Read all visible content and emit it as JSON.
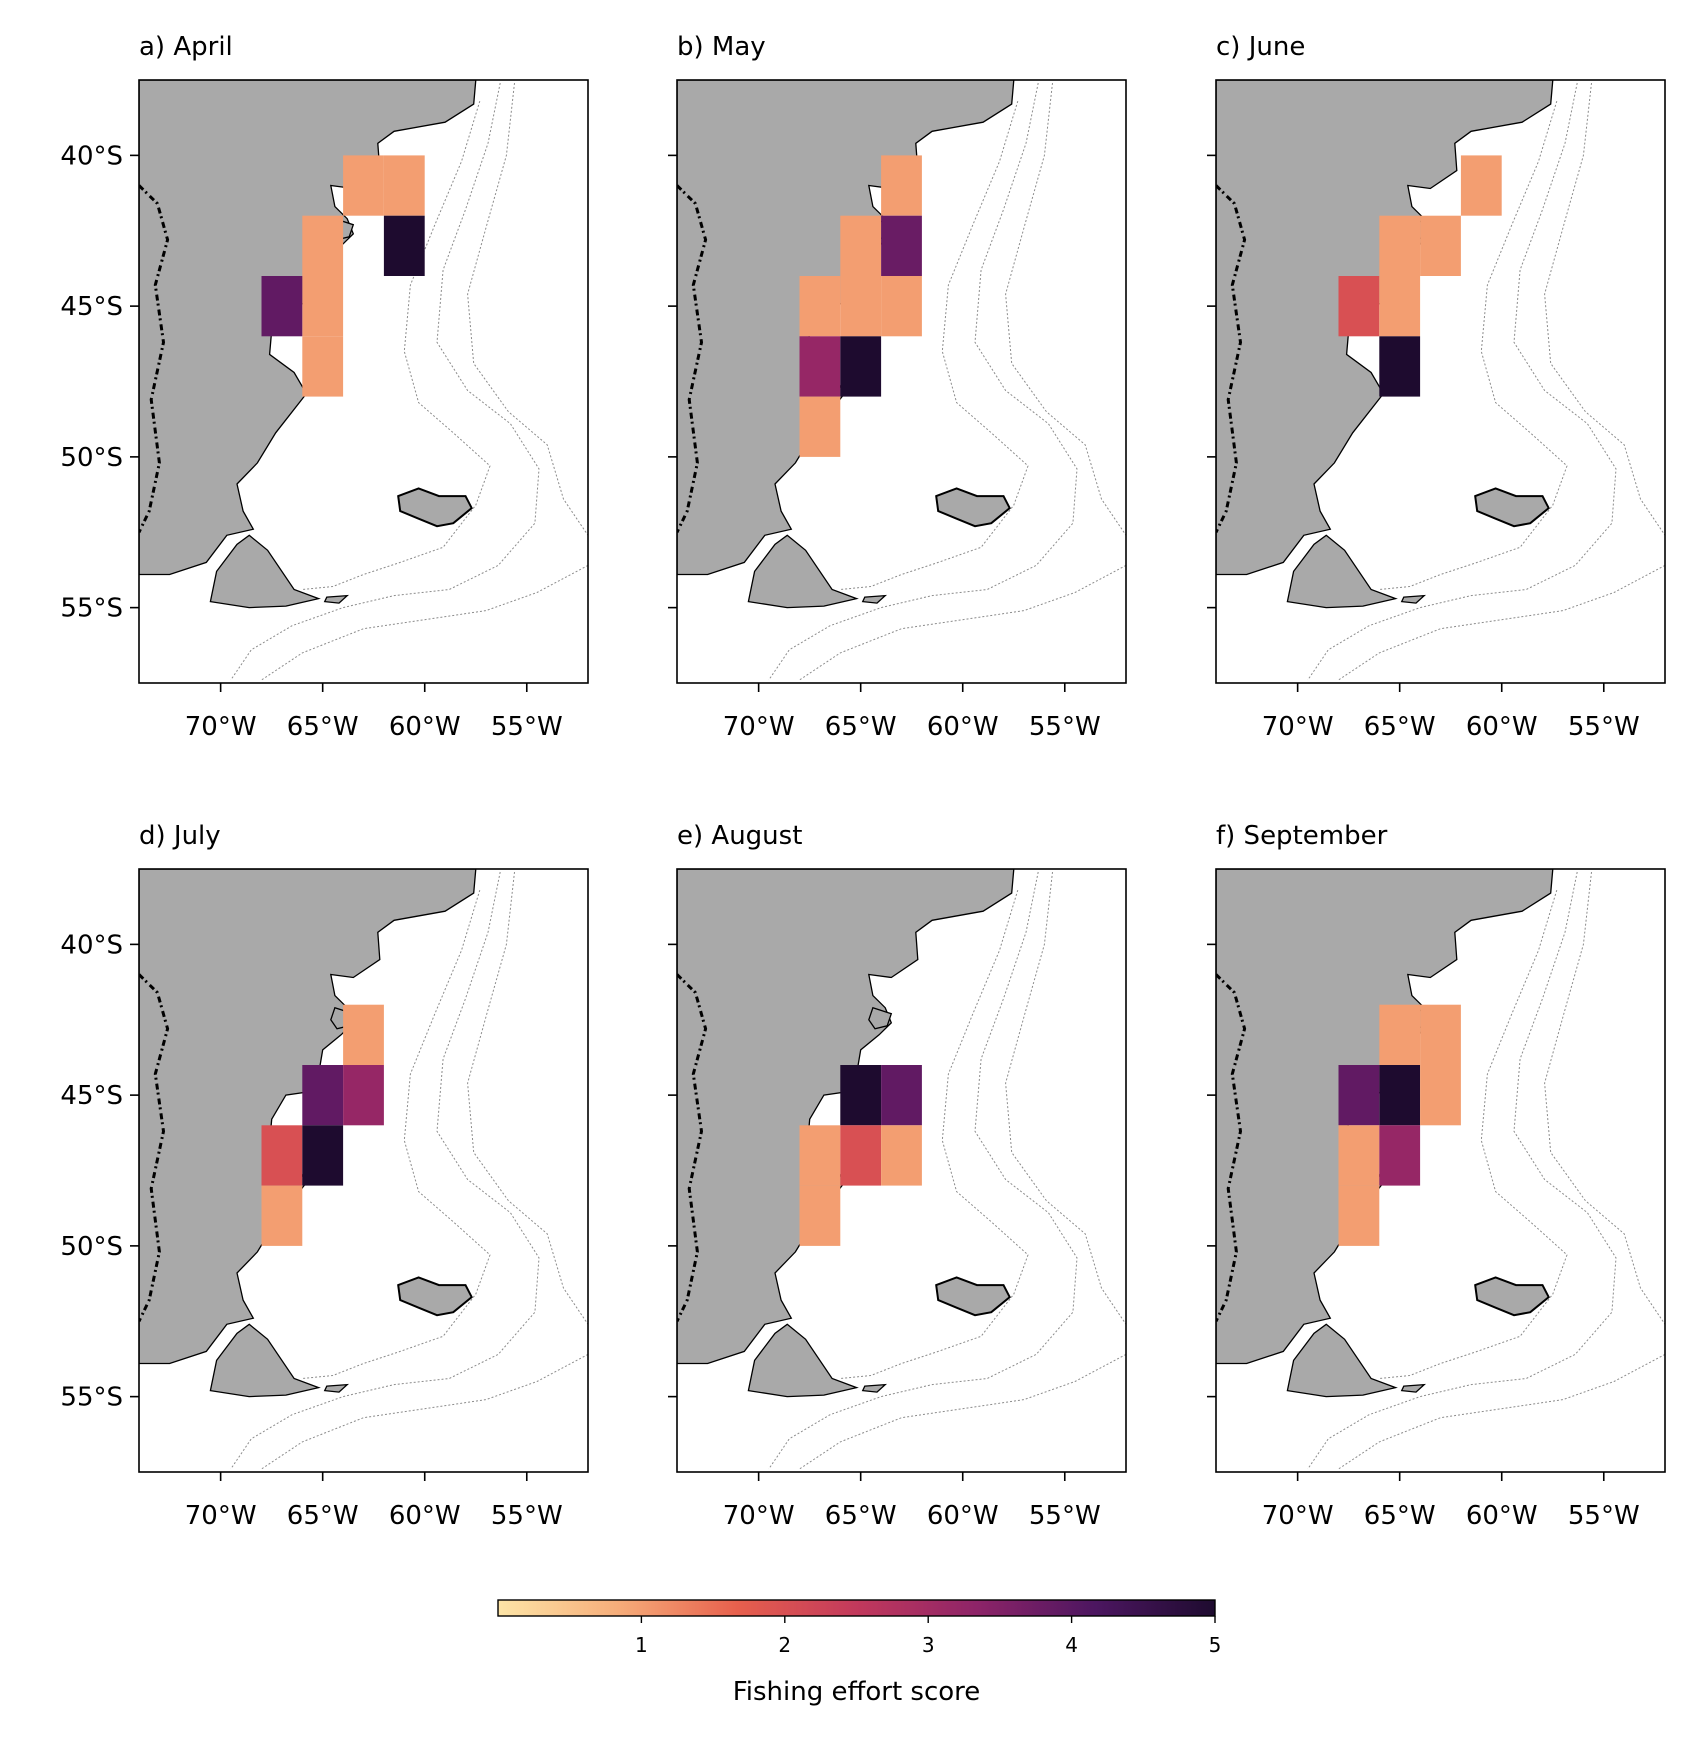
{
  "figure": {
    "colorbar": {
      "label": "Fishing effort score",
      "vmin": 0,
      "vmax": 5,
      "ticks": [
        "1",
        "2",
        "3",
        "4",
        "5"
      ],
      "colormap": [
        "#fde5a7",
        "#f6ad7a",
        "#e7604d",
        "#c2395c",
        "#8e2468",
        "#4c1660",
        "#1e0b2f"
      ]
    },
    "map_style": {
      "land_color": "#a9a9a9",
      "ocean_color": "#ffffff",
      "coast_color": "#000000",
      "isobath_color": "#8c8c8c"
    },
    "extent": {
      "lon_min": -74,
      "lon_max": -52,
      "lat_min": -57.5,
      "lat_max": -37.5
    },
    "x_tick_labels": [
      "70°W",
      "65°W",
      "60°W",
      "55°W"
    ],
    "y_tick_labels": [
      "40°S",
      "45°S",
      "50°S",
      "55°S"
    ]
  },
  "chart_data": [
    {
      "type": "heatmap",
      "title": "a) April",
      "cell_size_deg": 2,
      "cells": [
        {
          "lon": -63,
          "lat": -41,
          "score": 1.0
        },
        {
          "lon": -61,
          "lat": -41,
          "score": 1.0
        },
        {
          "lon": -65,
          "lat": -43,
          "score": 1.0
        },
        {
          "lon": -61,
          "lat": -43,
          "score": 5.0
        },
        {
          "lon": -65,
          "lat": -45,
          "score": 1.0
        },
        {
          "lon": -67,
          "lat": -45,
          "score": 3.9
        },
        {
          "lon": -65,
          "lat": -47,
          "score": 1.0
        }
      ]
    },
    {
      "type": "heatmap",
      "title": "b) May",
      "cell_size_deg": 2,
      "cells": [
        {
          "lon": -63,
          "lat": -41,
          "score": 1.0
        },
        {
          "lon": -65,
          "lat": -43,
          "score": 1.0
        },
        {
          "lon": -63,
          "lat": -43,
          "score": 3.8
        },
        {
          "lon": -67,
          "lat": -45,
          "score": 1.0
        },
        {
          "lon": -65,
          "lat": -45,
          "score": 1.0
        },
        {
          "lon": -63,
          "lat": -45,
          "score": 1.0
        },
        {
          "lon": -67,
          "lat": -47,
          "score": 3.2
        },
        {
          "lon": -65,
          "lat": -47,
          "score": 5.0
        },
        {
          "lon": -67,
          "lat": -49,
          "score": 1.0
        }
      ]
    },
    {
      "type": "heatmap",
      "title": "c) June",
      "cell_size_deg": 2,
      "cells": [
        {
          "lon": -61,
          "lat": -41,
          "score": 1.0
        },
        {
          "lon": -65,
          "lat": -43,
          "score": 1.0
        },
        {
          "lon": -63,
          "lat": -43,
          "score": 1.0
        },
        {
          "lon": -67,
          "lat": -45,
          "score": 2.0
        },
        {
          "lon": -65,
          "lat": -45,
          "score": 1.0
        },
        {
          "lon": -65,
          "lat": -47,
          "score": 5.0
        }
      ]
    },
    {
      "type": "heatmap",
      "title": "d) July",
      "cell_size_deg": 2,
      "cells": [
        {
          "lon": -63,
          "lat": -43,
          "score": 1.0
        },
        {
          "lon": -65,
          "lat": -45,
          "score": 3.9
        },
        {
          "lon": -63,
          "lat": -45,
          "score": 3.2
        },
        {
          "lon": -67,
          "lat": -47,
          "score": 2.0
        },
        {
          "lon": -65,
          "lat": -47,
          "score": 5.0
        },
        {
          "lon": -67,
          "lat": -49,
          "score": 1.0
        }
      ]
    },
    {
      "type": "heatmap",
      "title": "e) August",
      "cell_size_deg": 2,
      "cells": [
        {
          "lon": -65,
          "lat": -45,
          "score": 5.0
        },
        {
          "lon": -63,
          "lat": -45,
          "score": 3.9
        },
        {
          "lon": -67,
          "lat": -47,
          "score": 1.0
        },
        {
          "lon": -65,
          "lat": -47,
          "score": 2.0
        },
        {
          "lon": -63,
          "lat": -47,
          "score": 1.0
        },
        {
          "lon": -67,
          "lat": -49,
          "score": 1.0
        }
      ]
    },
    {
      "type": "heatmap",
      "title": "f) September",
      "cell_size_deg": 2,
      "cells": [
        {
          "lon": -65,
          "lat": -43,
          "score": 1.0
        },
        {
          "lon": -63,
          "lat": -43,
          "score": 1.0
        },
        {
          "lon": -65,
          "lat": -45,
          "score": 5.0
        },
        {
          "lon": -63,
          "lat": -45,
          "score": 1.0
        },
        {
          "lon": -67,
          "lat": -45,
          "score": 3.9
        },
        {
          "lon": -67,
          "lat": -47,
          "score": 1.0
        },
        {
          "lon": -65,
          "lat": -47,
          "score": 3.2
        },
        {
          "lon": -67,
          "lat": -49,
          "score": 1.0
        }
      ]
    }
  ]
}
